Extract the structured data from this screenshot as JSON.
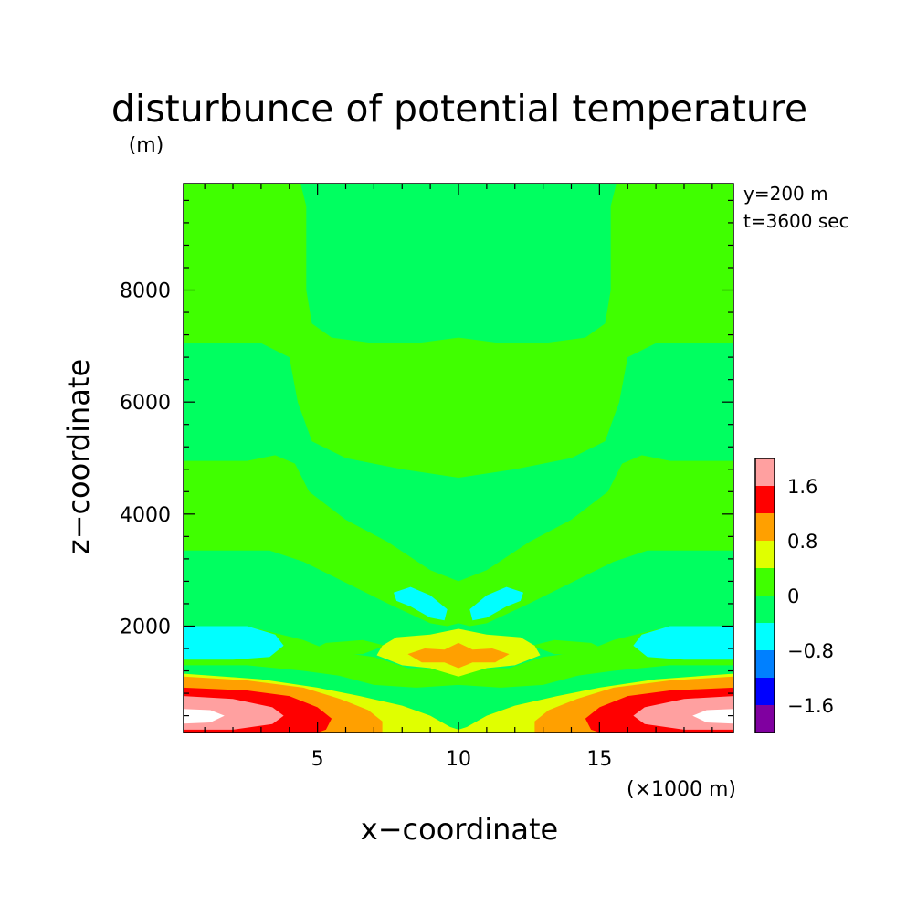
{
  "chart_data": {
    "type": "heatmap",
    "subtype": "filled-contour",
    "title": "disturbunce of potential temperature",
    "ylabel_unit": "(m)",
    "xlabel": "x−coordinate",
    "ylabel": "z−coordinate",
    "x_unit": "(×1000 m)",
    "annotations": [
      "y=200 m",
      "t=3600 sec"
    ],
    "xlim": [
      0.25,
      19.75
    ],
    "ylim": [
      100,
      9900
    ],
    "x_ticks": [
      {
        "value": 5,
        "label": "5"
      },
      {
        "value": 10,
        "label": "10"
      },
      {
        "value": 15,
        "label": "15"
      }
    ],
    "y_ticks": [
      {
        "value": 2000,
        "label": "2000"
      },
      {
        "value": 4000,
        "label": "4000"
      },
      {
        "value": 6000,
        "label": "6000"
      },
      {
        "value": 8000,
        "label": "8000"
      }
    ],
    "colorbar": {
      "levels": [
        {
          "from": null,
          "to": -2.0,
          "color": "#8000a0"
        },
        {
          "from": -2.0,
          "to": -1.6,
          "color": "#8000a0"
        },
        {
          "from": -1.6,
          "to": -1.2,
          "color": "#0000ff"
        },
        {
          "from": -1.2,
          "to": -0.8,
          "color": "#0080ff"
        },
        {
          "from": -0.8,
          "to": -0.4,
          "color": "#00ffff"
        },
        {
          "from": -0.4,
          "to": 0.0,
          "color": "#00ff60"
        },
        {
          "from": 0.0,
          "to": 0.4,
          "color": "#40ff00"
        },
        {
          "from": 0.4,
          "to": 0.8,
          "color": "#e0ff00"
        },
        {
          "from": 0.8,
          "to": 1.2,
          "color": "#ffa000"
        },
        {
          "from": 1.2,
          "to": 1.6,
          "color": "#ff0000"
        },
        {
          "from": 1.6,
          "to": 2.0,
          "color": "#ffa0a0"
        },
        {
          "from": 2.0,
          "to": null,
          "color": "#ffffff"
        }
      ],
      "colors_bottom_to_top": [
        "#8000a0",
        "#0000ff",
        "#0080ff",
        "#00ffff",
        "#00ff60",
        "#40ff00",
        "#e0ff00",
        "#ffa000",
        "#ff0000",
        "#ffa0a0"
      ],
      "tick_labels": [
        {
          "value": 1.6,
          "label": "1.6"
        },
        {
          "value": 0.8,
          "label": "0.8"
        },
        {
          "value": 0,
          "label": "0"
        },
        {
          "value": -0.8,
          "label": "−0.8"
        },
        {
          "value": -1.6,
          "label": "−1.6"
        }
      ]
    },
    "regions": [
      {
        "level": 0.2,
        "points": [
          [
            0.25,
            100
          ],
          [
            19.75,
            100
          ],
          [
            19.75,
            9900
          ],
          [
            0.25,
            9900
          ]
        ]
      },
      {
        "level": -0.2,
        "points": [
          [
            4.4,
            9900
          ],
          [
            4.6,
            9500
          ],
          [
            4.6,
            8000
          ],
          [
            4.8,
            7400
          ],
          [
            5.5,
            7150
          ],
          [
            7,
            7050
          ],
          [
            8.5,
            7050
          ],
          [
            10,
            7150
          ],
          [
            11.5,
            7050
          ],
          [
            13,
            7050
          ],
          [
            14.5,
            7150
          ],
          [
            15.2,
            7400
          ],
          [
            15.4,
            8000
          ],
          [
            15.4,
            9500
          ],
          [
            15.6,
            9900
          ]
        ]
      },
      {
        "level": -0.2,
        "points": [
          [
            0.25,
            7050
          ],
          [
            3.0,
            7050
          ],
          [
            4.0,
            6800
          ],
          [
            4.3,
            6000
          ],
          [
            4.8,
            5300
          ],
          [
            6,
            5000
          ],
          [
            8,
            4800
          ],
          [
            10,
            4650
          ],
          [
            12,
            4800
          ],
          [
            14,
            5000
          ],
          [
            15.2,
            5300
          ],
          [
            15.7,
            6000
          ],
          [
            16,
            6800
          ],
          [
            17,
            7050
          ],
          [
            19.75,
            7050
          ],
          [
            19.75,
            4950
          ],
          [
            17.5,
            4950
          ],
          [
            16.5,
            5050
          ],
          [
            15.8,
            4900
          ],
          [
            15.3,
            4400
          ],
          [
            14,
            3900
          ],
          [
            12.5,
            3500
          ],
          [
            11,
            3000
          ],
          [
            10,
            2800
          ],
          [
            9,
            3000
          ],
          [
            7.5,
            3500
          ],
          [
            6,
            3900
          ],
          [
            4.7,
            4400
          ],
          [
            4.2,
            4900
          ],
          [
            3.5,
            5050
          ],
          [
            2.5,
            4950
          ],
          [
            0.25,
            4950
          ]
        ]
      },
      {
        "level": -0.2,
        "points": [
          [
            0.25,
            3350
          ],
          [
            3.3,
            3350
          ],
          [
            4.5,
            3150
          ],
          [
            5.5,
            2900
          ],
          [
            7.5,
            2400
          ],
          [
            9,
            2050
          ],
          [
            9.6,
            2000
          ],
          [
            10,
            2050
          ],
          [
            10.4,
            2000
          ],
          [
            11,
            2050
          ],
          [
            12.5,
            2400
          ],
          [
            14.5,
            2900
          ],
          [
            15.5,
            3150
          ],
          [
            16.7,
            3350
          ],
          [
            19.75,
            3350
          ],
          [
            19.75,
            2000
          ],
          [
            17.5,
            2000
          ],
          [
            15.5,
            1750
          ],
          [
            14.5,
            1550
          ],
          [
            13,
            1450
          ],
          [
            11.5,
            1200
          ],
          [
            10.5,
            1050
          ],
          [
            10,
            1000
          ],
          [
            9.5,
            1050
          ],
          [
            8.5,
            1200
          ],
          [
            7,
            1450
          ],
          [
            5.5,
            1550
          ],
          [
            4.5,
            1750
          ],
          [
            2.5,
            2000
          ],
          [
            0.25,
            2000
          ]
        ]
      },
      {
        "level": -0.2,
        "points": [
          [
            0.25,
            1300
          ],
          [
            2.5,
            1300
          ],
          [
            4.5,
            1200
          ],
          [
            6,
            1100
          ],
          [
            7.5,
            1050
          ],
          [
            9,
            1000
          ],
          [
            10,
            950
          ],
          [
            11,
            1000
          ],
          [
            12.5,
            1050
          ],
          [
            14,
            1100
          ],
          [
            15.5,
            1200
          ],
          [
            17.5,
            1300
          ],
          [
            19.75,
            1300
          ],
          [
            19.75,
            1150
          ],
          [
            17,
            1050
          ],
          [
            15,
            900
          ],
          [
            13.5,
            750
          ],
          [
            12,
            580
          ],
          [
            11,
            400
          ],
          [
            10.3,
            200
          ],
          [
            10,
            150
          ],
          [
            9.7,
            200
          ],
          [
            9,
            400
          ],
          [
            8,
            580
          ],
          [
            6.5,
            750
          ],
          [
            5,
            900
          ],
          [
            3,
            1050
          ],
          [
            0.25,
            1150
          ]
        ]
      },
      {
        "level": 0.2,
        "points": [
          [
            5.3,
            1700
          ],
          [
            6.6,
            1750
          ],
          [
            7.4,
            1650
          ],
          [
            6.6,
            1500
          ],
          [
            5.3,
            1480
          ],
          [
            4.9,
            1600
          ]
        ]
      },
      {
        "level": 0.2,
        "points": [
          [
            14.7,
            1700
          ],
          [
            13.4,
            1750
          ],
          [
            12.6,
            1650
          ],
          [
            13.4,
            1500
          ],
          [
            14.7,
            1480
          ],
          [
            15.1,
            1600
          ]
        ]
      },
      {
        "level": 0.2,
        "points": [
          [
            5.5,
            1150
          ],
          [
            7.8,
            1250
          ],
          [
            8.8,
            1250
          ],
          [
            9.6,
            1180
          ],
          [
            10,
            1150
          ],
          [
            10.4,
            1180
          ],
          [
            11.2,
            1250
          ],
          [
            12.2,
            1250
          ],
          [
            14.5,
            1150
          ],
          [
            13,
            950
          ],
          [
            11.5,
            900
          ],
          [
            10,
            950
          ],
          [
            8.5,
            900
          ],
          [
            7,
            950
          ]
        ]
      },
      {
        "level": -0.6,
        "points": [
          [
            0.25,
            2000
          ],
          [
            2.5,
            2000
          ],
          [
            3.5,
            1850
          ],
          [
            3.8,
            1650
          ],
          [
            3.3,
            1450
          ],
          [
            2,
            1400
          ],
          [
            0.25,
            1400
          ]
        ]
      },
      {
        "level": -0.6,
        "points": [
          [
            19.75,
            2000
          ],
          [
            17.5,
            2000
          ],
          [
            16.5,
            1850
          ],
          [
            16.2,
            1650
          ],
          [
            16.7,
            1450
          ],
          [
            18,
            1400
          ],
          [
            19.75,
            1400
          ]
        ]
      },
      {
        "level": -0.6,
        "points": [
          [
            7.7,
            2600
          ],
          [
            8.3,
            2700
          ],
          [
            9,
            2550
          ],
          [
            9.6,
            2300
          ],
          [
            9.5,
            2100
          ],
          [
            9,
            2150
          ],
          [
            8.3,
            2350
          ],
          [
            7.8,
            2450
          ]
        ]
      },
      {
        "level": -0.6,
        "points": [
          [
            12.3,
            2600
          ],
          [
            11.7,
            2700
          ],
          [
            11,
            2550
          ],
          [
            10.4,
            2300
          ],
          [
            10.5,
            2100
          ],
          [
            11,
            2150
          ],
          [
            11.7,
            2350
          ],
          [
            12.2,
            2450
          ]
        ]
      },
      {
        "level": 0.6,
        "points": [
          [
            0.25,
            1150
          ],
          [
            3,
            1050
          ],
          [
            5,
            900
          ],
          [
            6.5,
            750
          ],
          [
            8,
            580
          ],
          [
            9,
            400
          ],
          [
            9.7,
            200
          ],
          [
            10,
            150
          ],
          [
            10.3,
            200
          ],
          [
            11,
            400
          ],
          [
            12,
            580
          ],
          [
            13.5,
            750
          ],
          [
            15,
            900
          ],
          [
            17,
            1050
          ],
          [
            19.75,
            1150
          ],
          [
            19.75,
            100
          ],
          [
            0.25,
            100
          ]
        ]
      },
      {
        "level": 0.6,
        "points": [
          [
            7.1,
            1480
          ],
          [
            7.3,
            1650
          ],
          [
            7.8,
            1800
          ],
          [
            9.0,
            1850
          ],
          [
            10.0,
            1950
          ],
          [
            11.0,
            1850
          ],
          [
            12.2,
            1800
          ],
          [
            12.7,
            1650
          ],
          [
            12.9,
            1480
          ],
          [
            12.0,
            1300
          ],
          [
            11,
            1250
          ],
          [
            10,
            1100
          ],
          [
            9,
            1250
          ],
          [
            8,
            1300
          ]
        ]
      },
      {
        "level": 1.0,
        "points": [
          [
            8.2,
            1500
          ],
          [
            8.8,
            1600
          ],
          [
            9.5,
            1580
          ],
          [
            10,
            1700
          ],
          [
            10.5,
            1580
          ],
          [
            11.2,
            1600
          ],
          [
            11.8,
            1500
          ],
          [
            11.3,
            1350
          ],
          [
            10.5,
            1350
          ],
          [
            10,
            1250
          ],
          [
            9.5,
            1350
          ],
          [
            8.7,
            1350
          ]
        ]
      },
      {
        "level": 1.0,
        "points": [
          [
            0.25,
            1100
          ],
          [
            2.5,
            1030
          ],
          [
            4.5,
            900
          ],
          [
            5.8,
            700
          ],
          [
            6.8,
            500
          ],
          [
            7.3,
            300
          ],
          [
            7.3,
            100
          ],
          [
            0.25,
            100
          ]
        ]
      },
      {
        "level": 1.0,
        "points": [
          [
            19.75,
            1100
          ],
          [
            17.5,
            1030
          ],
          [
            15.5,
            900
          ],
          [
            14.2,
            700
          ],
          [
            13.2,
            500
          ],
          [
            12.7,
            300
          ],
          [
            12.7,
            100
          ],
          [
            19.75,
            100
          ]
        ]
      },
      {
        "level": 1.4,
        "points": [
          [
            0.25,
            900
          ],
          [
            2.5,
            850
          ],
          [
            4.0,
            750
          ],
          [
            5,
            550
          ],
          [
            5.5,
            350
          ],
          [
            5.3,
            150
          ],
          [
            5,
            100
          ],
          [
            0.25,
            100
          ]
        ]
      },
      {
        "level": 1.4,
        "points": [
          [
            19.75,
            900
          ],
          [
            17.5,
            850
          ],
          [
            16,
            750
          ],
          [
            15,
            550
          ],
          [
            14.5,
            350
          ],
          [
            14.7,
            150
          ],
          [
            15,
            100
          ],
          [
            19.75,
            100
          ]
        ]
      },
      {
        "level": 1.8,
        "points": [
          [
            0.25,
            750
          ],
          [
            2,
            700
          ],
          [
            3.4,
            550
          ],
          [
            3.8,
            400
          ],
          [
            3.4,
            250
          ],
          [
            2,
            150
          ],
          [
            0.25,
            150
          ]
        ]
      },
      {
        "level": 1.8,
        "points": [
          [
            19.75,
            750
          ],
          [
            18,
            700
          ],
          [
            16.6,
            550
          ],
          [
            16.2,
            400
          ],
          [
            16.6,
            250
          ],
          [
            18,
            150
          ],
          [
            19.75,
            150
          ]
        ]
      },
      {
        "level": 2.2,
        "points": [
          [
            0.25,
            520
          ],
          [
            1.2,
            500
          ],
          [
            1.7,
            400
          ],
          [
            1.2,
            280
          ],
          [
            0.25,
            260
          ]
        ]
      },
      {
        "level": 2.2,
        "points": [
          [
            19.75,
            520
          ],
          [
            18.8,
            500
          ],
          [
            18.3,
            400
          ],
          [
            18.8,
            280
          ],
          [
            19.75,
            260
          ]
        ]
      }
    ]
  }
}
